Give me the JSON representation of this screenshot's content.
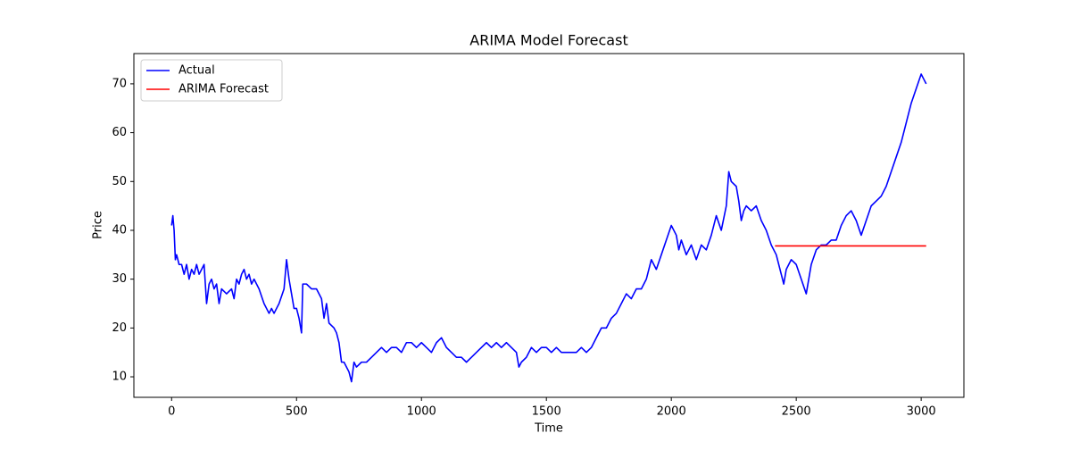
{
  "chart_data": {
    "type": "line",
    "title": "ARIMA Model Forecast",
    "x_label": "Time",
    "y_label": "Price",
    "xlim": [
      -151,
      3171
    ],
    "ylim": [
      5.8,
      76.2
    ],
    "xticks": [
      0,
      500,
      1000,
      1500,
      2000,
      2500,
      3000
    ],
    "yticks": [
      10,
      20,
      30,
      40,
      50,
      60,
      70
    ],
    "grid": false,
    "legend": "upper left",
    "series": [
      {
        "name": "Actual",
        "color": "#0000ff",
        "x": [
          0,
          5,
          10,
          15,
          20,
          30,
          40,
          50,
          60,
          70,
          80,
          90,
          100,
          110,
          120,
          130,
          140,
          150,
          160,
          170,
          180,
          190,
          200,
          220,
          240,
          250,
          260,
          270,
          280,
          290,
          300,
          310,
          320,
          330,
          350,
          370,
          390,
          400,
          410,
          430,
          450,
          460,
          470,
          480,
          490,
          500,
          510,
          520,
          525,
          540,
          560,
          580,
          600,
          610,
          620,
          630,
          650,
          660,
          670,
          680,
          690,
          700,
          710,
          720,
          730,
          740,
          760,
          780,
          800,
          820,
          840,
          860,
          880,
          900,
          920,
          940,
          960,
          980,
          1000,
          1020,
          1040,
          1060,
          1080,
          1100,
          1120,
          1140,
          1160,
          1180,
          1200,
          1220,
          1240,
          1260,
          1280,
          1300,
          1320,
          1340,
          1360,
          1380,
          1390,
          1400,
          1420,
          1440,
          1460,
          1480,
          1500,
          1520,
          1540,
          1560,
          1580,
          1600,
          1620,
          1640,
          1660,
          1680,
          1700,
          1720,
          1740,
          1760,
          1780,
          1800,
          1820,
          1840,
          1860,
          1880,
          1900,
          1920,
          1940,
          1960,
          1980,
          2000,
          2020,
          2030,
          2040,
          2060,
          2080,
          2100,
          2120,
          2140,
          2160,
          2180,
          2200,
          2220,
          2230,
          2240,
          2260,
          2270,
          2280,
          2290,
          2300,
          2320,
          2340,
          2360,
          2380,
          2400,
          2420,
          2440,
          2450,
          2460,
          2480,
          2500,
          2520,
          2540,
          2560,
          2580,
          2600,
          2620,
          2640,
          2660,
          2680,
          2700,
          2720,
          2740,
          2760,
          2780,
          2800,
          2820,
          2840,
          2860,
          2880,
          2900,
          2920,
          2940,
          2960,
          2980,
          3000,
          3010,
          3020
        ],
        "values": [
          41,
          43,
          40,
          34,
          35,
          33,
          33,
          31,
          33,
          30,
          32,
          31,
          33,
          31,
          32,
          33,
          25,
          29,
          30,
          28,
          29,
          25,
          28,
          27,
          28,
          26,
          30,
          29,
          31,
          32,
          30,
          31,
          29,
          30,
          28,
          25,
          23,
          24,
          23,
          25,
          28,
          34,
          30,
          27,
          24,
          24,
          22,
          19,
          29,
          29,
          28,
          28,
          26,
          22,
          25,
          21,
          20,
          19,
          17,
          13,
          13,
          12,
          11,
          9,
          13,
          12,
          13,
          13,
          14,
          15,
          16,
          15,
          16,
          16,
          15,
          17,
          17,
          16,
          17,
          16,
          15,
          17,
          18,
          16,
          15,
          14,
          14,
          13,
          14,
          15,
          16,
          17,
          16,
          17,
          16,
          17,
          16,
          15,
          12,
          13,
          14,
          16,
          15,
          16,
          16,
          15,
          16,
          15,
          15,
          15,
          15,
          16,
          15,
          16,
          18,
          20,
          20,
          22,
          23,
          25,
          27,
          26,
          28,
          28,
          30,
          34,
          32,
          35,
          38,
          41,
          39,
          36,
          38,
          35,
          37,
          34,
          37,
          36,
          39,
          43,
          40,
          45,
          52,
          50,
          49,
          46,
          42,
          44,
          45,
          44,
          45,
          42,
          40,
          37,
          35,
          31,
          29,
          32,
          34,
          33,
          30,
          27,
          33,
          36,
          37,
          37,
          38,
          38,
          41,
          43,
          44,
          42,
          39,
          42,
          45,
          46,
          47,
          49,
          52,
          55,
          58,
          62,
          66,
          69,
          72,
          71,
          70
        ]
      },
      {
        "name": "ARIMA Forecast",
        "color": "#ff0000",
        "x": [
          2415,
          3020
        ],
        "values": [
          36.8,
          36.8
        ]
      }
    ]
  }
}
